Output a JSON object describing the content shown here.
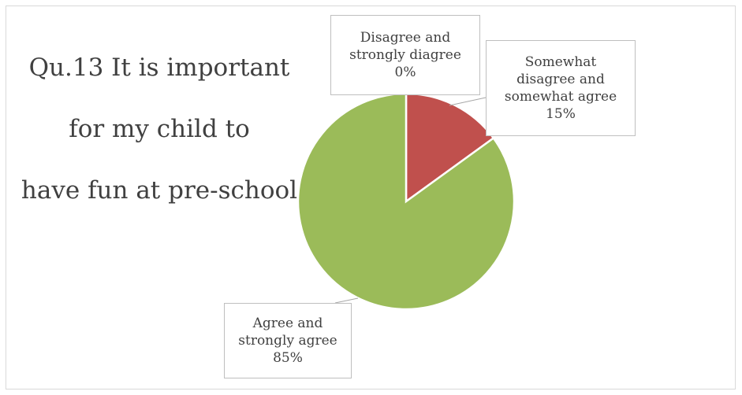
{
  "chart_data": {
    "type": "pie",
    "title": "Qu.13 It is important for my child to have fun at pre-school",
    "title_lines": [
      "Qu.13 It is important",
      "for my child to",
      "have fun at pre-school"
    ],
    "slices": [
      {
        "label_lines": [
          "Disagree and",
          "strongly diagree"
        ],
        "value": 0,
        "percent_label": "0%",
        "color": "#4f81bd"
      },
      {
        "label_lines": [
          "Somewhat",
          "disagree and",
          "somewhat agree"
        ],
        "value": 15,
        "percent_label": "15%",
        "color": "#c0504d"
      },
      {
        "label_lines": [
          "Agree and",
          "strongly agree"
        ],
        "value": 85,
        "percent_label": "85%",
        "color": "#9bbb59"
      }
    ],
    "legend": "none",
    "data_labels": "callout boxes with leader lines"
  }
}
